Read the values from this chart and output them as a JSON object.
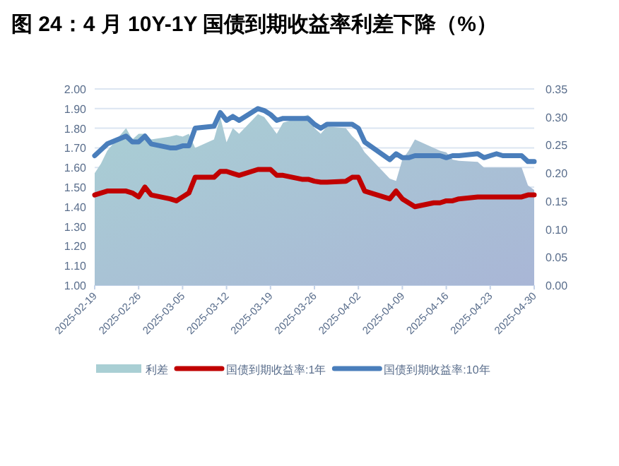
{
  "chart_data": {
    "type": "line",
    "title": "图 24：4 月 10Y-1Y 国债到期收益率利差下降（%）",
    "x": [
      "2025-02-19",
      "2025-02-20",
      "2025-02-21",
      "2025-02-24",
      "2025-02-25",
      "2025-02-26",
      "2025-02-27",
      "2025-02-28",
      "2025-03-03",
      "2025-03-04",
      "2025-03-05",
      "2025-03-06",
      "2025-03-07",
      "2025-03-10",
      "2025-03-11",
      "2025-03-12",
      "2025-03-13",
      "2025-03-14",
      "2025-03-17",
      "2025-03-18",
      "2025-03-19",
      "2025-03-20",
      "2025-03-21",
      "2025-03-24",
      "2025-03-25",
      "2025-03-26",
      "2025-03-27",
      "2025-03-28",
      "2025-03-31",
      "2025-04-01",
      "2025-04-02",
      "2025-04-03",
      "2025-04-07",
      "2025-04-08",
      "2025-04-09",
      "2025-04-10",
      "2025-04-11",
      "2025-04-14",
      "2025-04-15",
      "2025-04-16",
      "2025-04-17",
      "2025-04-18",
      "2025-04-21",
      "2025-04-22",
      "2025-04-23",
      "2025-04-24",
      "2025-04-25",
      "2025-04-28",
      "2025-04-29",
      "2025-04-30"
    ],
    "series": [
      {
        "name": "利差",
        "type": "area",
        "axis": "y2",
        "color": "#a9cfd4",
        "values": [
          0.2,
          0.217,
          0.24,
          0.28,
          0.26,
          0.27,
          0.27,
          0.26,
          0.265,
          0.268,
          0.265,
          0.27,
          0.245,
          0.26,
          0.3,
          0.255,
          0.28,
          0.27,
          0.305,
          0.3,
          0.285,
          0.27,
          0.29,
          0.3,
          0.304,
          0.28,
          0.27,
          0.283,
          0.28,
          0.266,
          0.255,
          0.237,
          0.19,
          0.186,
          0.224,
          0.24,
          0.26,
          0.245,
          0.24,
          0.237,
          0.224,
          0.222,
          0.22,
          0.21,
          0.21,
          0.21,
          0.21,
          0.21,
          0.178,
          0.17
        ]
      },
      {
        "name": "国债到期收益率:1年",
        "color": "#c00000",
        "values": [
          1.46,
          1.47,
          1.48,
          1.48,
          1.47,
          1.45,
          1.5,
          1.46,
          1.44,
          1.43,
          1.45,
          1.47,
          1.55,
          1.55,
          1.58,
          1.58,
          1.57,
          1.56,
          1.59,
          1.59,
          1.59,
          1.56,
          1.56,
          1.54,
          1.54,
          1.53,
          1.525,
          1.525,
          1.53,
          1.55,
          1.55,
          1.48,
          1.44,
          1.48,
          1.44,
          1.42,
          1.4,
          1.42,
          1.42,
          1.43,
          1.43,
          1.44,
          1.45,
          1.45,
          1.45,
          1.45,
          1.45,
          1.45,
          1.46,
          1.46
        ]
      },
      {
        "name": "国债到期收益率:10年",
        "color": "#4a7ebb",
        "values": [
          1.66,
          1.69,
          1.72,
          1.76,
          1.73,
          1.73,
          1.76,
          1.72,
          1.7,
          1.7,
          1.71,
          1.71,
          1.8,
          1.81,
          1.88,
          1.84,
          1.86,
          1.84,
          1.9,
          1.89,
          1.87,
          1.84,
          1.85,
          1.85,
          1.85,
          1.82,
          1.8,
          1.82,
          1.82,
          1.82,
          1.8,
          1.73,
          1.64,
          1.67,
          1.65,
          1.65,
          1.66,
          1.66,
          1.66,
          1.65,
          1.66,
          1.66,
          1.67,
          1.65,
          1.66,
          1.67,
          1.66,
          1.66,
          1.63,
          1.63
        ]
      }
    ],
    "xlim": [
      "2025-02-19",
      "2025-04-30"
    ],
    "xticks": [
      "2025-02-19",
      "2025-02-26",
      "2025-03-05",
      "2025-03-12",
      "2025-03-19",
      "2025-03-26",
      "2025-04-02",
      "2025-04-09",
      "2025-04-16",
      "2025-04-23",
      "2025-04-30"
    ],
    "ylim": [
      1.0,
      2.0
    ],
    "yticks": [
      {
        "value": 1.0,
        "label": "1.00"
      },
      {
        "value": 1.1,
        "label": "1.10"
      },
      {
        "value": 1.2,
        "label": "1.20"
      },
      {
        "value": 1.3,
        "label": "1.30"
      },
      {
        "value": 1.4,
        "label": "1.40"
      },
      {
        "value": 1.5,
        "label": "1.50"
      },
      {
        "value": 1.6,
        "label": "1.60"
      },
      {
        "value": 1.7,
        "label": "1.70"
      },
      {
        "value": 1.8,
        "label": "1.80"
      },
      {
        "value": 1.9,
        "label": "1.90"
      },
      {
        "value": 2.0,
        "label": "2.00"
      }
    ],
    "y2lim": [
      0,
      0.35
    ],
    "y2ticks": [
      {
        "value": 0,
        "label": "0.00"
      },
      {
        "value": 0.05,
        "label": "0.05"
      },
      {
        "value": 0.1,
        "label": "0.10"
      },
      {
        "value": 0.15,
        "label": "0.15"
      },
      {
        "value": 0.2,
        "label": "0.20"
      },
      {
        "value": 0.25,
        "label": "0.25"
      },
      {
        "value": 0.3,
        "label": "0.30"
      },
      {
        "value": 0.35,
        "label": "0.35"
      }
    ],
    "grid": "y",
    "legend": "bottom",
    "marker": "none",
    "line_style": "solid"
  }
}
